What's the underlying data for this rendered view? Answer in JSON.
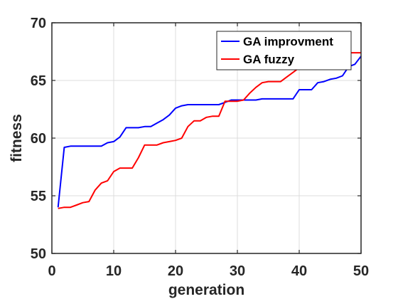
{
  "chart_data": {
    "type": "line",
    "xlabel": "generation",
    "ylabel": "fitness",
    "xlim": [
      0,
      50
    ],
    "ylim": [
      50,
      70
    ],
    "xticks": [
      0,
      10,
      20,
      30,
      40,
      50
    ],
    "yticks": [
      50,
      55,
      60,
      65,
      70
    ],
    "grid": true,
    "legend_position": "top-right",
    "series": [
      {
        "name": "GA improvment",
        "color": "#0000ff",
        "x": [
          1,
          2,
          3,
          4,
          5,
          6,
          7,
          8,
          9,
          10,
          11,
          12,
          13,
          14,
          15,
          16,
          17,
          18,
          19,
          20,
          21,
          22,
          23,
          24,
          25,
          26,
          27,
          28,
          29,
          30,
          31,
          32,
          33,
          34,
          35,
          36,
          37,
          38,
          39,
          40,
          41,
          42,
          43,
          44,
          45,
          46,
          47,
          48,
          49,
          50
        ],
        "y": [
          54.0,
          59.2,
          59.3,
          59.3,
          59.3,
          59.3,
          59.3,
          59.3,
          59.6,
          59.7,
          60.1,
          60.9,
          60.9,
          60.9,
          61.0,
          61.0,
          61.3,
          61.6,
          62.0,
          62.6,
          62.8,
          62.9,
          62.9,
          62.9,
          62.9,
          62.9,
          62.9,
          63.1,
          63.3,
          63.3,
          63.3,
          63.3,
          63.3,
          63.4,
          63.4,
          63.4,
          63.4,
          63.4,
          63.4,
          64.2,
          64.2,
          64.2,
          64.8,
          64.9,
          65.1,
          65.2,
          65.4,
          66.2,
          66.4,
          67.1
        ]
      },
      {
        "name": "GA fuzzy",
        "color": "#ff0000",
        "x": [
          1,
          2,
          3,
          4,
          5,
          6,
          7,
          8,
          9,
          10,
          11,
          12,
          13,
          14,
          15,
          16,
          17,
          18,
          19,
          20,
          21,
          22,
          23,
          24,
          25,
          26,
          27,
          28,
          29,
          30,
          31,
          32,
          33,
          34,
          35,
          36,
          37,
          38,
          39,
          40,
          41,
          42,
          43,
          44,
          45,
          46,
          47,
          48,
          49,
          50
        ],
        "y": [
          53.9,
          54.0,
          54.0,
          54.2,
          54.4,
          54.5,
          55.5,
          56.1,
          56.3,
          57.1,
          57.4,
          57.4,
          57.4,
          58.3,
          59.4,
          59.4,
          59.4,
          59.6,
          59.7,
          59.8,
          60.0,
          61.0,
          61.5,
          61.5,
          61.8,
          61.9,
          61.9,
          63.2,
          63.2,
          63.2,
          63.3,
          63.9,
          64.4,
          64.8,
          64.9,
          64.9,
          64.9,
          65.3,
          65.7,
          66.1,
          66.4,
          66.6,
          66.7,
          66.9,
          67.0,
          67.1,
          67.3,
          67.4,
          67.4,
          67.4
        ]
      }
    ]
  }
}
